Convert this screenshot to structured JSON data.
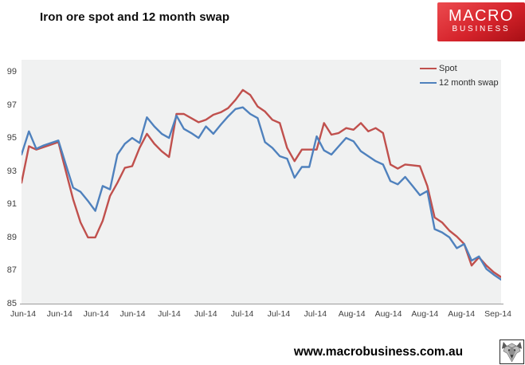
{
  "header": {
    "title": "Iron ore spot and 12 month swap",
    "logo": {
      "line1": "MACRO",
      "line2": "BUSINESS",
      "bg_color_top": "#ec4b4f",
      "bg_color_bottom": "#a80f15"
    }
  },
  "chart_data": {
    "type": "line",
    "title": "Iron ore spot and 12 month swap",
    "xlabel": "",
    "ylabel": "",
    "ylim": [
      85,
      99
    ],
    "y_ticks": [
      99,
      97,
      95,
      93,
      91,
      89,
      87,
      85
    ],
    "x_tick_labels": [
      "Jun-14",
      "Jun-14",
      "Jun-14",
      "Jun-14",
      "Jul-14",
      "Jul-14",
      "Jul-14",
      "Jul-14",
      "Jul-14",
      "Aug-14",
      "Aug-14",
      "Aug-14",
      "Aug-14",
      "Sep-14"
    ],
    "grid": false,
    "plot_background": "#f0f1f1",
    "axis_line_color": "#9c9c9c",
    "legend_position": "top-right-inside",
    "series": [
      {
        "name": "Spot",
        "color": "#c0504d",
        "values": [
          92.3,
          94.5,
          94.3,
          94.45,
          94.6,
          94.75,
          93.0,
          91.3,
          89.9,
          89.0,
          89.0,
          90.0,
          91.5,
          92.3,
          93.2,
          93.3,
          94.4,
          95.25,
          94.65,
          94.2,
          93.85,
          96.45,
          96.45,
          96.2,
          95.95,
          96.1,
          96.4,
          96.55,
          96.8,
          97.3,
          97.9,
          97.6,
          96.9,
          96.6,
          96.1,
          95.9,
          94.4,
          93.6,
          94.3,
          94.3,
          94.3,
          95.9,
          95.2,
          95.3,
          95.6,
          95.5,
          95.9,
          95.4,
          95.6,
          95.3,
          93.4,
          93.15,
          93.4,
          93.35,
          93.3,
          92.1,
          90.2,
          89.9,
          89.4,
          89.05,
          88.6,
          87.3,
          87.8,
          87.3,
          86.9,
          86.6
        ]
      },
      {
        "name": "12 month swap",
        "color": "#4f81bd",
        "values": [
          94.0,
          95.4,
          94.35,
          94.55,
          94.7,
          94.85,
          93.4,
          92.0,
          91.75,
          91.2,
          90.6,
          92.1,
          91.9,
          94.0,
          94.65,
          95.0,
          94.7,
          96.25,
          95.7,
          95.25,
          95.0,
          96.35,
          95.55,
          95.3,
          95.0,
          95.7,
          95.25,
          95.8,
          96.3,
          96.75,
          96.85,
          96.45,
          96.2,
          94.75,
          94.4,
          93.9,
          93.75,
          92.6,
          93.25,
          93.25,
          95.1,
          94.25,
          94.0,
          94.5,
          95.0,
          94.8,
          94.2,
          93.9,
          93.6,
          93.4,
          92.4,
          92.2,
          92.65,
          92.1,
          91.55,
          91.8,
          89.5,
          89.3,
          89.0,
          88.35,
          88.6,
          87.6,
          87.85,
          87.1,
          86.75,
          86.45
        ]
      }
    ]
  },
  "footer": {
    "url": "www.macrobusiness.com.au",
    "logo_name": "wolf-logo"
  }
}
